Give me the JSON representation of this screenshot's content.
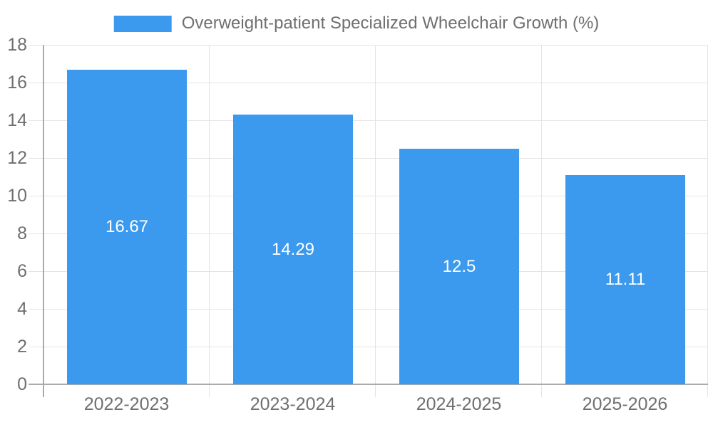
{
  "legend": {
    "label": "Overweight-patient Specialized Wheelchair Growth (%)",
    "swatch_color": "#3B99EE"
  },
  "chart_data": {
    "type": "bar",
    "title": "Overweight-patient Specialized Wheelchair Growth (%)",
    "categories": [
      "2022-2023",
      "2023-2024",
      "2024-2025",
      "2025-2026"
    ],
    "values": [
      16.67,
      14.29,
      12.5,
      11.11
    ],
    "value_labels": [
      "16.67",
      "14.29",
      "12.5",
      "11.11"
    ],
    "xlabel": "",
    "ylabel": "",
    "ylim": [
      0,
      18
    ],
    "yticks": [
      0,
      2,
      4,
      6,
      8,
      10,
      12,
      14,
      16,
      18
    ],
    "ytick_labels": [
      "0",
      "2",
      "4",
      "6",
      "8",
      "10",
      "12",
      "14",
      "16",
      "18"
    ],
    "grid": true,
    "legend_position": "top-center",
    "bar_color": "#3B99EE",
    "value_label_color": "#FFFFFF"
  },
  "colors": {
    "bar": "#3B99EE",
    "axis": "#ABABAB",
    "grid": "#E4E4E4",
    "text": "#6F6F6F",
    "background": "#FFFFFF"
  }
}
